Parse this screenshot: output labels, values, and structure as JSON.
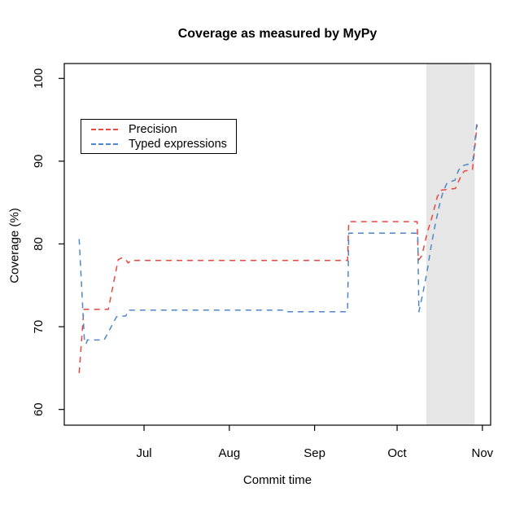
{
  "title": "Coverage as measured by MyPy",
  "chart_data": {
    "type": "line",
    "title": "Coverage as measured by MyPy",
    "xlabel": "Commit time",
    "ylabel": "Coverage (%)",
    "x_unit": "days since Jun 1",
    "xlim": [
      1,
      156
    ],
    "ylim": [
      58.1,
      101.8
    ],
    "grid": false,
    "x_ticks": {
      "days": [
        30,
        61,
        92,
        122,
        153
      ],
      "labels": [
        "Jul",
        "Aug",
        "Sep",
        "Oct",
        "Nov"
      ]
    },
    "y_ticks": {
      "values": [
        60,
        70,
        80,
        90,
        100
      ],
      "labels": [
        "60",
        "70",
        "80",
        "90",
        "100"
      ]
    },
    "shaded_region": {
      "x_from_day": 132.6,
      "x_to_day": 150.2,
      "color": "#e6e6e6"
    },
    "legend": {
      "position": "top-left-inside",
      "entries": [
        {
          "label": "Precision",
          "color": "#e8483e",
          "linestyle": "dashed"
        },
        {
          "label": "Typed expressions",
          "color": "#4e86c8",
          "linestyle": "dashed"
        }
      ]
    },
    "series": [
      {
        "name": "Precision",
        "color": "#e8483e",
        "linestyle": "dashed",
        "points": [
          [
            6.4,
            64.4
          ],
          [
            8.1,
            72.1
          ],
          [
            17.0,
            72.1
          ],
          [
            20.6,
            78.1
          ],
          [
            21.8,
            78.3
          ],
          [
            23.2,
            78.2
          ],
          [
            24.2,
            77.7
          ],
          [
            25.2,
            78.0
          ],
          [
            104.0,
            78.0
          ],
          [
            104.4,
            82.7
          ],
          [
            129.3,
            82.7
          ],
          [
            129.7,
            78.0
          ],
          [
            131.0,
            78.6
          ],
          [
            133.0,
            81.4
          ],
          [
            135.0,
            83.6
          ],
          [
            136.6,
            85.7
          ],
          [
            138.0,
            86.5
          ],
          [
            143.2,
            86.7
          ],
          [
            145.2,
            88.2
          ],
          [
            146.4,
            88.8
          ],
          [
            149.4,
            89.0
          ],
          [
            151.1,
            94.4
          ]
        ]
      },
      {
        "name": "Typed expressions",
        "color": "#4e86c8",
        "linestyle": "dashed",
        "points": [
          [
            6.4,
            80.6
          ],
          [
            8.3,
            68.4
          ],
          [
            8.9,
            67.9
          ],
          [
            9.4,
            68.4
          ],
          [
            15.5,
            68.4
          ],
          [
            20.0,
            71.2
          ],
          [
            23.4,
            71.3
          ],
          [
            24.3,
            72.0
          ],
          [
            80.8,
            72.0
          ],
          [
            81.6,
            71.8
          ],
          [
            104.0,
            71.8
          ],
          [
            104.4,
            81.3
          ],
          [
            129.5,
            81.3
          ],
          [
            129.9,
            71.8
          ],
          [
            131.2,
            73.8
          ],
          [
            132.8,
            76.5
          ],
          [
            134.4,
            79.8
          ],
          [
            136.0,
            82.6
          ],
          [
            137.6,
            85.0
          ],
          [
            138.8,
            86.4
          ],
          [
            140.2,
            87.4
          ],
          [
            143.0,
            87.7
          ],
          [
            144.2,
            88.8
          ],
          [
            145.2,
            89.4
          ],
          [
            148.6,
            89.7
          ],
          [
            149.6,
            90.2
          ],
          [
            151.1,
            95.0
          ]
        ]
      }
    ]
  }
}
